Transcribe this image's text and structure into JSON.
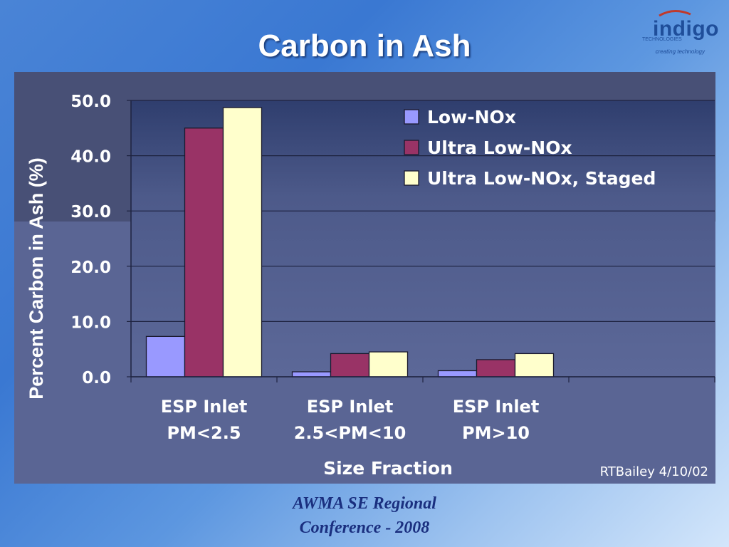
{
  "slide": {
    "title": "Carbon in Ash",
    "footer_line1": "AWMA SE Regional",
    "footer_line2": "Conference - 2008"
  },
  "logo": {
    "word": "indigo",
    "sub": "TECHNOLOGIES",
    "tagline": "creating technology",
    "color": "#1f4e9a"
  },
  "chart_data": {
    "type": "bar",
    "title": "",
    "ylabel": "Percent Carbon in Ash (%)",
    "xlabel": "Size Fraction",
    "ylim": [
      0,
      50
    ],
    "yticks": [
      "0.0",
      "10.0",
      "20.0",
      "30.0",
      "40.0",
      "50.0"
    ],
    "grid": true,
    "legend_position": "top-right",
    "categories": [
      [
        "ESP Inlet",
        "PM<2.5"
      ],
      [
        "ESP Inlet",
        "2.5<PM<10"
      ],
      [
        "ESP Inlet",
        "PM>10"
      ]
    ],
    "series": [
      {
        "name": "Low-NOx",
        "color": "#9999ff",
        "values": [
          7.3,
          0.9,
          1.1
        ]
      },
      {
        "name": "Ultra Low-NOx",
        "color": "#993366",
        "values": [
          45.0,
          4.2,
          3.1
        ]
      },
      {
        "name": "Ultra Low-NOx, Staged",
        "color": "#ffffcc",
        "values": [
          48.7,
          4.5,
          4.2
        ]
      }
    ],
    "annotation": "RTBailey 4/10/02"
  }
}
